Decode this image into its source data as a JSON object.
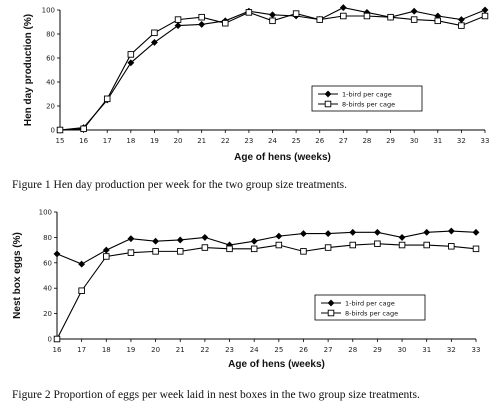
{
  "chart_data": [
    {
      "type": "line",
      "title": "",
      "xlabel": "Age of hens (weeks)",
      "ylabel": "Hen day production (%)",
      "x": [
        15,
        16,
        17,
        18,
        19,
        20,
        21,
        22,
        23,
        24,
        25,
        26,
        27,
        28,
        29,
        30,
        31,
        32,
        33
      ],
      "xlim": [
        15,
        33
      ],
      "ylim": [
        0,
        100
      ],
      "yticks": [
        0,
        20,
        40,
        60,
        80,
        100
      ],
      "grid": false,
      "legend_position": "lower-right",
      "series": [
        {
          "name": "1-bird per cage",
          "marker": "filled-diamond",
          "values": [
            0,
            2,
            25,
            56,
            73,
            87,
            88,
            91,
            99,
            96,
            95,
            92,
            102,
            98,
            94,
            99,
            95,
            92,
            100
          ]
        },
        {
          "name": "8-birds per cage",
          "marker": "open-square",
          "values": [
            0,
            1,
            26,
            63,
            81,
            92,
            94,
            89,
            98,
            91,
            97,
            92,
            95,
            95,
            94,
            92,
            91,
            87,
            95
          ]
        }
      ],
      "caption": "Figure 1   Hen day production per week for the two group size treatments."
    },
    {
      "type": "line",
      "title": "",
      "xlabel": "Age of hens (weeks)",
      "ylabel": "Nest box eggs (%)",
      "x": [
        16,
        17,
        18,
        19,
        20,
        21,
        22,
        23,
        24,
        25,
        26,
        27,
        28,
        29,
        30,
        31,
        32,
        33
      ],
      "xlim": [
        16,
        33
      ],
      "ylim": [
        0,
        100
      ],
      "yticks": [
        0,
        20,
        40,
        60,
        80,
        100
      ],
      "grid": false,
      "legend_position": "lower-right",
      "series": [
        {
          "name": "1-bird per cage",
          "marker": "filled-diamond",
          "values": [
            67,
            59,
            70,
            79,
            77,
            78,
            80,
            74,
            77,
            81,
            83,
            83,
            84,
            84,
            80,
            84,
            85,
            84
          ]
        },
        {
          "name": "8-birds per cage",
          "marker": "open-square",
          "values": [
            0,
            38,
            65,
            68,
            69,
            69,
            72,
            71,
            71,
            74,
            69,
            72,
            74,
            75,
            74,
            74,
            73,
            71
          ]
        }
      ],
      "caption": "Figure 2   Proportion of eggs per week laid in nest boxes in the two group size treatments."
    }
  ]
}
